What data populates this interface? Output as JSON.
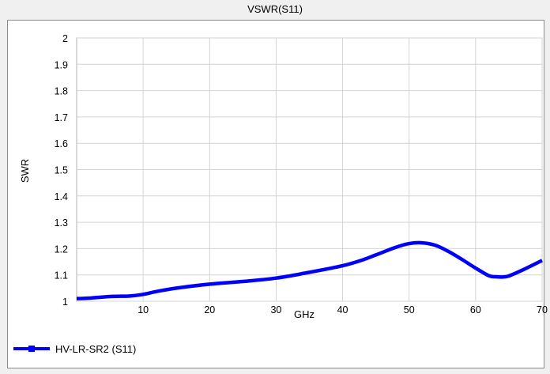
{
  "chart_data": {
    "type": "line",
    "title": "VSWR(S11)",
    "xlabel": "GHz",
    "ylabel": "SWR",
    "xlim": [
      0,
      70
    ],
    "ylim": [
      1,
      2
    ],
    "xticks": [
      10,
      20,
      30,
      40,
      50,
      60,
      70
    ],
    "yticks": [
      1,
      1.1,
      1.2,
      1.3,
      1.4,
      1.5,
      1.6,
      1.7,
      1.8,
      1.9,
      2
    ],
    "xtick_labels": [
      "10",
      "20",
      "30",
      "40",
      "50",
      "60",
      "70"
    ],
    "ytick_labels": [
      "1",
      "1.1",
      "1.2",
      "1.3",
      "1.4",
      "1.5",
      "1.6",
      "1.7",
      "1.8",
      "1.9",
      "2"
    ],
    "grid": true,
    "legend_position": "bottom-left",
    "series": [
      {
        "name": "HV-LR-SR2 (S11)",
        "color": "#0000ff",
        "x": [
          0,
          2,
          5,
          8,
          10,
          12,
          15,
          20,
          25,
          30,
          35,
          40,
          43,
          45,
          48,
          50,
          52,
          54,
          56,
          58,
          60,
          62,
          63,
          64,
          65,
          67,
          70
        ],
        "y": [
          1.01,
          1.012,
          1.018,
          1.02,
          1.026,
          1.037,
          1.05,
          1.065,
          1.075,
          1.088,
          1.11,
          1.135,
          1.157,
          1.176,
          1.205,
          1.219,
          1.222,
          1.212,
          1.188,
          1.158,
          1.126,
          1.097,
          1.093,
          1.092,
          1.096,
          1.118,
          1.155
        ]
      }
    ]
  }
}
